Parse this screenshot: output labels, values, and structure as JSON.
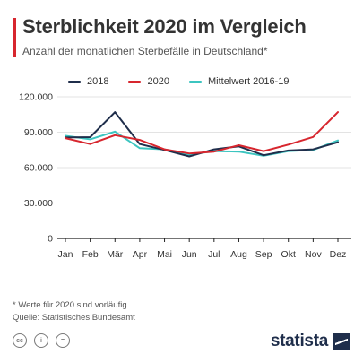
{
  "header": {
    "title": "Sterblichkeit 2020 im Vergleich",
    "subtitle": "Anzahl der monatlichen Sterbefälle in Deutschland*"
  },
  "colors": {
    "accent": "#d7262e",
    "grid": "#e3e3e3",
    "axis": "#222222"
  },
  "chart_data": {
    "type": "line",
    "title": "Sterblichkeit 2020 im Vergleich",
    "subtitle": "Anzahl der monatlichen Sterbefälle in Deutschland*",
    "categories": [
      "Jan",
      "Feb",
      "Mär",
      "Apr",
      "Mai",
      "Jun",
      "Jul",
      "Aug",
      "Sep",
      "Okt",
      "Nov",
      "Dez"
    ],
    "ylim": [
      0,
      120000
    ],
    "yticks": [
      0,
      30000,
      60000,
      90000,
      120000
    ],
    "ytick_labels": [
      "0",
      "30.000",
      "60.000",
      "90.000",
      "120.000"
    ],
    "grid": true,
    "legend_position": "top",
    "series": [
      {
        "name": "2018",
        "color": "#1f2e4b",
        "values": [
          85500,
          85800,
          107000,
          80000,
          75000,
          69500,
          75500,
          78000,
          70500,
          74500,
          75500,
          81500
        ]
      },
      {
        "name": "2020",
        "color": "#d7262e",
        "values": [
          85000,
          80000,
          87500,
          83500,
          75500,
          72000,
          73500,
          79000,
          74000,
          79500,
          86000,
          107000
        ]
      },
      {
        "name": "Mittelwert 2016-19",
        "color": "#3cc5c0",
        "values": [
          87000,
          84000,
          90500,
          76500,
          75500,
          71000,
          74000,
          73500,
          70000,
          74000,
          75000,
          83000
        ]
      }
    ]
  },
  "footer": {
    "footnote": "* Werte für 2020 sind vorläufig",
    "source": "Quelle: Statistisches Bundesamt",
    "brand": "statista"
  }
}
